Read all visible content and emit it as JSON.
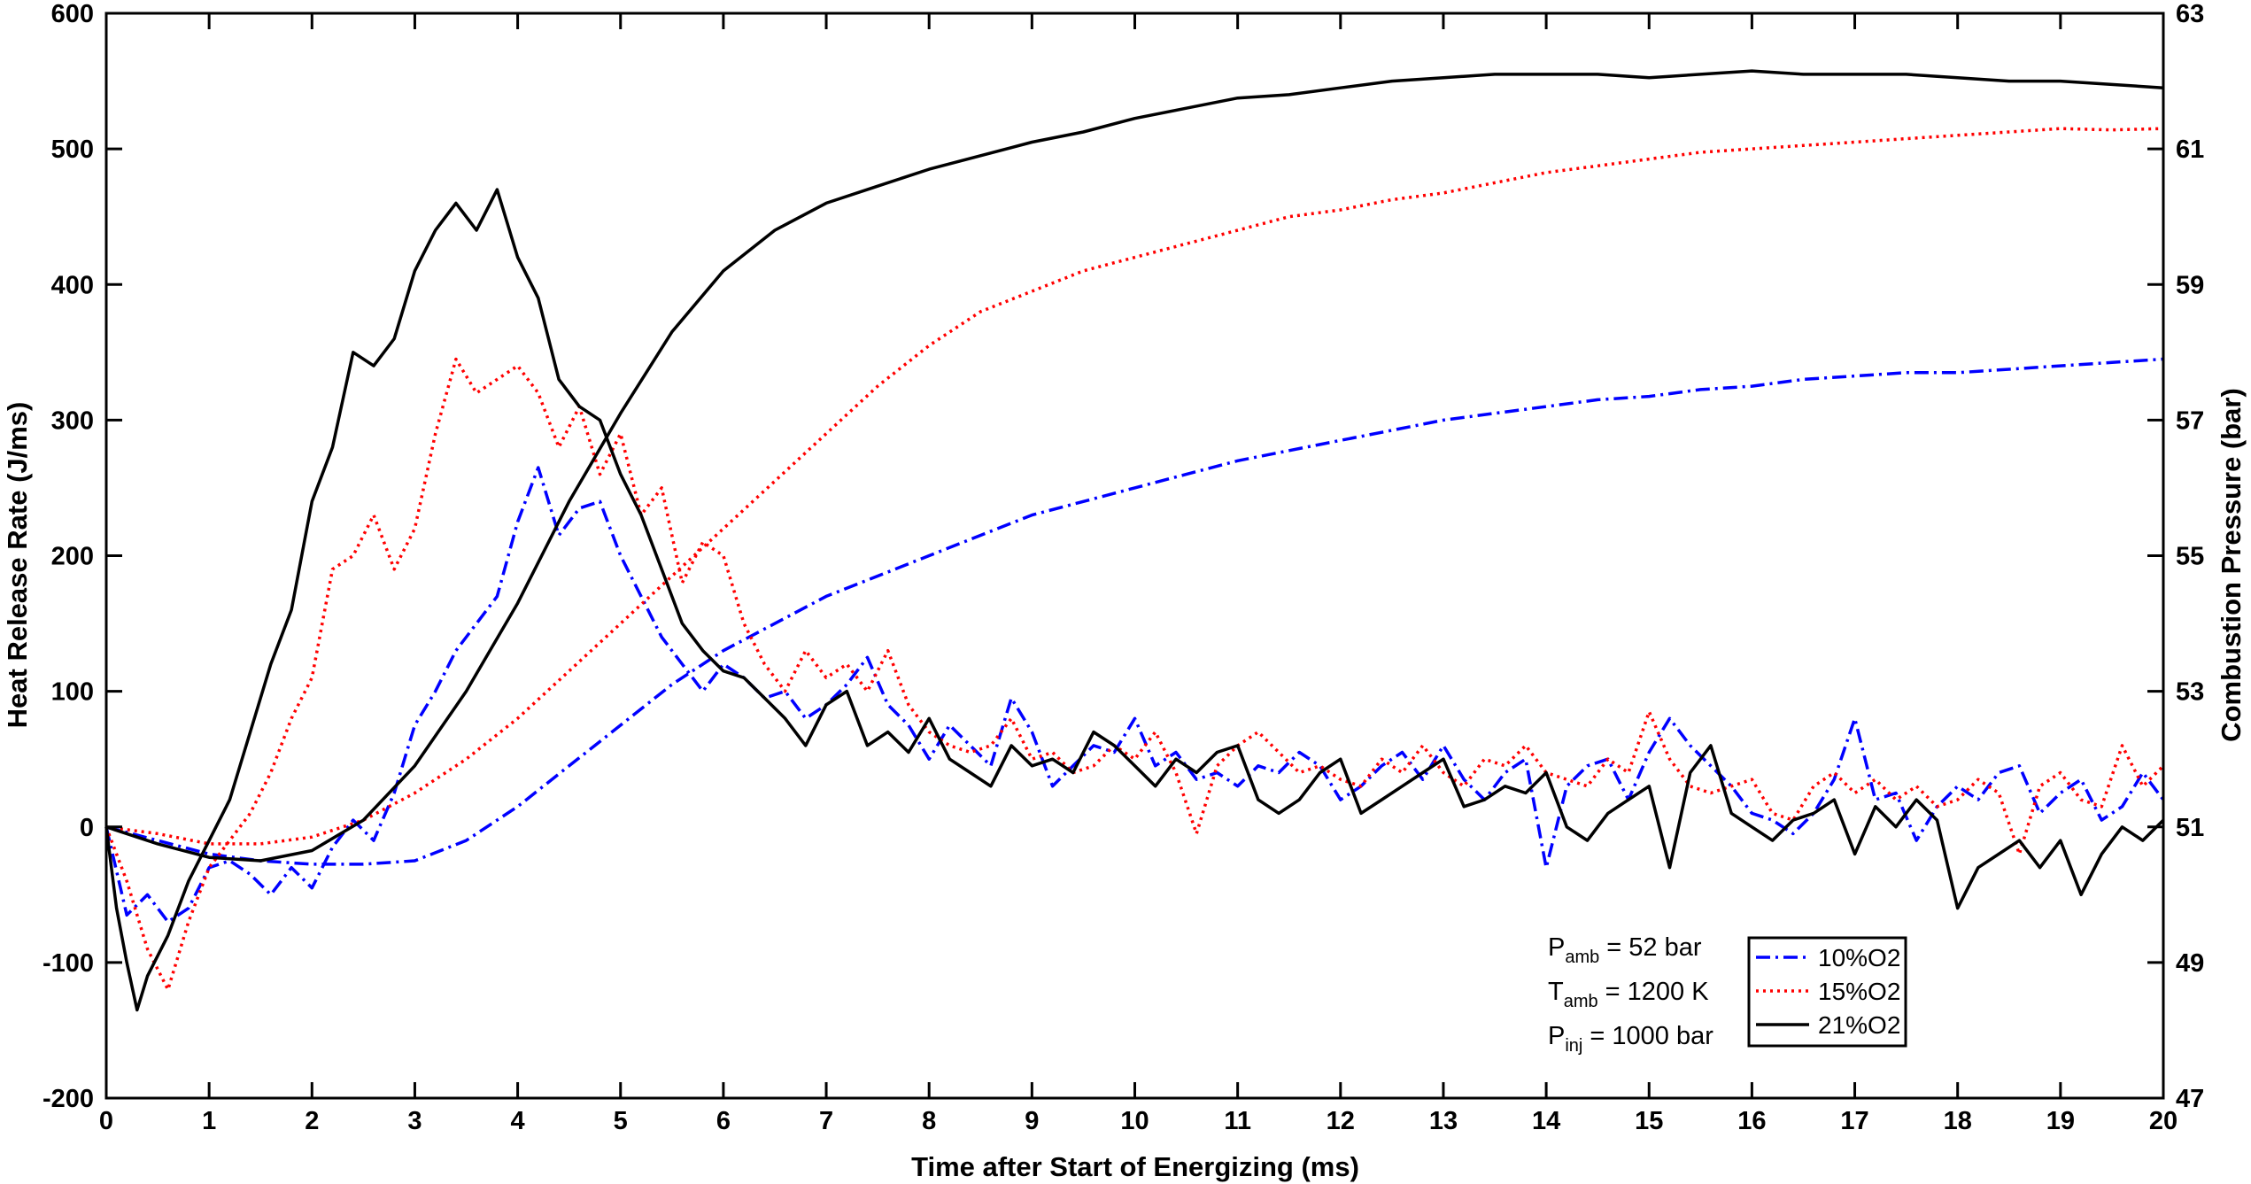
{
  "chart_data": {
    "type": "line",
    "title": "",
    "xlabel": "Time after Start of Energizing (ms)",
    "ylabel": "Heat Release Rate (J/ms)",
    "y2label": "Combustion Pressure (bar)",
    "xlim": [
      0,
      20
    ],
    "ylim": [
      -200,
      600
    ],
    "y2lim": [
      47,
      63
    ],
    "xticks": [
      "0",
      "1",
      "2",
      "3",
      "4",
      "5",
      "6",
      "7",
      "8",
      "9",
      "10",
      "11",
      "12",
      "13",
      "14",
      "15",
      "16",
      "17",
      "18",
      "19",
      "20"
    ],
    "yticks": [
      "-200",
      "-100",
      "0",
      "100",
      "200",
      "300",
      "400",
      "500",
      "600"
    ],
    "y2ticks": [
      "47",
      "49",
      "51",
      "53",
      "55",
      "57",
      "59",
      "61",
      "63"
    ],
    "grid": false,
    "legend_position": "bottom-right",
    "annotations": [
      {
        "symbol": "P",
        "sub": "amb",
        "text": " = 52 bar"
      },
      {
        "symbol": "T",
        "sub": "amb",
        "text": " = 1200 K"
      },
      {
        "symbol": "P",
        "sub": "inj",
        "text": " = 1000 bar"
      }
    ],
    "series": [
      {
        "name": "10%O2",
        "quantity": "heat release rate",
        "axis": "left",
        "color": "#0000ff",
        "dash": "dashdot",
        "x": [
          0,
          0.2,
          0.4,
          0.6,
          0.8,
          1.0,
          1.2,
          1.4,
          1.6,
          1.8,
          2.0,
          2.2,
          2.4,
          2.6,
          2.8,
          3.0,
          3.2,
          3.4,
          3.6,
          3.8,
          4.0,
          4.2,
          4.4,
          4.6,
          4.8,
          5.0,
          5.2,
          5.4,
          5.6,
          5.8,
          6.0,
          6.2,
          6.4,
          6.6,
          6.8,
          7.0,
          7.2,
          7.4,
          7.6,
          7.8,
          8.0,
          8.2,
          8.4,
          8.6,
          8.8,
          9.0,
          9.2,
          9.4,
          9.6,
          9.8,
          10.0,
          10.2,
          10.4,
          10.6,
          10.8,
          11.0,
          11.2,
          11.4,
          11.6,
          11.8,
          12.0,
          12.2,
          12.4,
          12.6,
          12.8,
          13.0,
          13.2,
          13.4,
          13.6,
          13.8,
          14.0,
          14.2,
          14.4,
          14.6,
          14.8,
          15.0,
          15.2,
          15.4,
          15.6,
          15.8,
          16.0,
          16.2,
          16.4,
          16.6,
          16.8,
          17.0,
          17.2,
          17.4,
          17.6,
          17.8,
          18.0,
          18.2,
          18.4,
          18.6,
          18.8,
          19.0,
          19.2,
          19.4,
          19.6,
          19.8,
          20.0
        ],
        "y": [
          0,
          -65,
          -50,
          -70,
          -60,
          -30,
          -25,
          -35,
          -50,
          -30,
          -45,
          -15,
          5,
          -10,
          25,
          75,
          100,
          130,
          150,
          170,
          225,
          265,
          215,
          235,
          240,
          200,
          170,
          140,
          120,
          100,
          120,
          110,
          95,
          100,
          80,
          90,
          105,
          125,
          90,
          75,
          50,
          75,
          60,
          45,
          95,
          70,
          30,
          45,
          60,
          55,
          80,
          45,
          55,
          35,
          40,
          30,
          45,
          40,
          55,
          45,
          20,
          30,
          45,
          55,
          35,
          60,
          35,
          20,
          40,
          50,
          -30,
          30,
          45,
          50,
          20,
          55,
          80,
          60,
          45,
          30,
          10,
          5,
          -5,
          10,
          35,
          80,
          20,
          25,
          -10,
          15,
          30,
          20,
          40,
          45,
          10,
          25,
          35,
          5,
          15,
          40,
          20
        ],
        "y2_x": [
          0,
          0.5,
          1,
          1.5,
          2,
          2.5,
          3,
          3.5,
          4,
          4.5,
          5,
          5.5,
          6,
          6.5,
          7,
          7.5,
          8,
          8.5,
          9,
          9.5,
          10,
          10.5,
          11,
          11.5,
          12,
          12.5,
          13,
          13.5,
          14,
          14.5,
          15,
          15.5,
          16,
          16.5,
          17,
          17.5,
          18,
          18.5,
          19,
          19.5,
          20
        ],
        "y2": [
          51.0,
          50.8,
          50.6,
          50.5,
          50.45,
          50.45,
          50.5,
          50.8,
          51.3,
          51.9,
          52.5,
          53.1,
          53.6,
          54.0,
          54.4,
          54.7,
          55.0,
          55.3,
          55.6,
          55.8,
          56.0,
          56.2,
          56.4,
          56.55,
          56.7,
          56.85,
          57.0,
          57.1,
          57.2,
          57.3,
          57.35,
          57.45,
          57.5,
          57.6,
          57.65,
          57.7,
          57.7,
          57.75,
          57.8,
          57.85,
          57.9
        ]
      },
      {
        "name": "15%O2",
        "quantity": "heat release rate",
        "axis": "left",
        "color": "#ff0000",
        "dash": "dotted",
        "x": [
          0,
          0.2,
          0.4,
          0.6,
          0.8,
          1.0,
          1.2,
          1.4,
          1.6,
          1.8,
          2.0,
          2.2,
          2.4,
          2.6,
          2.8,
          3.0,
          3.2,
          3.4,
          3.6,
          3.8,
          4.0,
          4.2,
          4.4,
          4.6,
          4.8,
          5.0,
          5.2,
          5.4,
          5.6,
          5.8,
          6.0,
          6.2,
          6.4,
          6.6,
          6.8,
          7.0,
          7.2,
          7.4,
          7.6,
          7.8,
          8.0,
          8.2,
          8.4,
          8.6,
          8.8,
          9.0,
          9.2,
          9.4,
          9.6,
          9.8,
          10.0,
          10.2,
          10.4,
          10.6,
          10.8,
          11.0,
          11.2,
          11.4,
          11.6,
          11.8,
          12.0,
          12.2,
          12.4,
          12.6,
          12.8,
          13.0,
          13.2,
          13.4,
          13.6,
          13.8,
          14.0,
          14.2,
          14.4,
          14.6,
          14.8,
          15.0,
          15.2,
          15.4,
          15.6,
          15.8,
          16.0,
          16.2,
          16.4,
          16.6,
          16.8,
          17.0,
          17.2,
          17.4,
          17.6,
          17.8,
          18.0,
          18.2,
          18.4,
          18.6,
          18.8,
          19.0,
          19.2,
          19.4,
          19.6,
          19.8,
          20.0
        ],
        "y": [
          0,
          -40,
          -90,
          -120,
          -70,
          -30,
          -10,
          10,
          40,
          80,
          110,
          190,
          200,
          230,
          190,
          220,
          290,
          345,
          320,
          330,
          340,
          320,
          280,
          310,
          260,
          290,
          230,
          250,
          180,
          210,
          200,
          150,
          120,
          100,
          130,
          110,
          120,
          100,
          130,
          90,
          70,
          60,
          55,
          60,
          80,
          50,
          55,
          40,
          45,
          60,
          50,
          70,
          40,
          -5,
          45,
          60,
          70,
          55,
          40,
          45,
          35,
          30,
          50,
          40,
          60,
          40,
          30,
          50,
          45,
          60,
          40,
          35,
          30,
          50,
          40,
          85,
          50,
          30,
          25,
          30,
          35,
          10,
          5,
          30,
          40,
          25,
          35,
          20,
          30,
          15,
          20,
          35,
          25,
          -20,
          30,
          40,
          20,
          15,
          60,
          30,
          45
        ],
        "y2_x": [
          0,
          0.5,
          1,
          1.5,
          2,
          2.5,
          3,
          3.5,
          4,
          4.5,
          5,
          5.5,
          6,
          6.5,
          7,
          7.5,
          8,
          8.5,
          9,
          9.5,
          10,
          10.5,
          11,
          11.5,
          12,
          12.5,
          13,
          13.5,
          14,
          14.5,
          15,
          15.5,
          16,
          16.5,
          17,
          17.5,
          18,
          18.5,
          19,
          19.5,
          20
        ],
        "y2": [
          51.0,
          50.9,
          50.75,
          50.75,
          50.85,
          51.1,
          51.5,
          52.0,
          52.6,
          53.3,
          54.0,
          54.7,
          55.4,
          56.1,
          56.8,
          57.5,
          58.1,
          58.6,
          58.9,
          59.2,
          59.4,
          59.6,
          59.8,
          60.0,
          60.1,
          60.25,
          60.35,
          60.5,
          60.65,
          60.75,
          60.85,
          60.95,
          61.0,
          61.05,
          61.1,
          61.15,
          61.2,
          61.25,
          61.3,
          61.28,
          61.3
        ]
      },
      {
        "name": "21%O2",
        "quantity": "heat release rate",
        "axis": "left",
        "color": "#000000",
        "dash": "solid",
        "x": [
          0,
          0.1,
          0.2,
          0.3,
          0.4,
          0.6,
          0.8,
          1.0,
          1.2,
          1.4,
          1.6,
          1.8,
          2.0,
          2.2,
          2.4,
          2.6,
          2.8,
          3.0,
          3.2,
          3.4,
          3.6,
          3.8,
          4.0,
          4.2,
          4.4,
          4.6,
          4.8,
          5.0,
          5.2,
          5.4,
          5.6,
          5.8,
          6.0,
          6.2,
          6.4,
          6.6,
          6.8,
          7.0,
          7.2,
          7.4,
          7.6,
          7.8,
          8.0,
          8.2,
          8.4,
          8.6,
          8.8,
          9.0,
          9.2,
          9.4,
          9.6,
          9.8,
          10.0,
          10.2,
          10.4,
          10.6,
          10.8,
          11.0,
          11.2,
          11.4,
          11.6,
          11.8,
          12.0,
          12.2,
          12.4,
          12.6,
          12.8,
          13.0,
          13.2,
          13.4,
          13.6,
          13.8,
          14.0,
          14.2,
          14.4,
          14.6,
          14.8,
          15.0,
          15.2,
          15.4,
          15.6,
          15.8,
          16.0,
          16.2,
          16.4,
          16.6,
          16.8,
          17.0,
          17.2,
          17.4,
          17.6,
          17.8,
          18.0,
          18.2,
          18.4,
          18.6,
          18.8,
          19.0,
          19.2,
          19.4,
          19.6,
          19.8,
          20.0
        ],
        "y": [
          0,
          -60,
          -100,
          -135,
          -110,
          -80,
          -40,
          -10,
          20,
          70,
          120,
          160,
          240,
          280,
          350,
          340,
          360,
          410,
          440,
          460,
          440,
          470,
          420,
          390,
          330,
          310,
          300,
          260,
          230,
          190,
          150,
          130,
          115,
          110,
          95,
          80,
          60,
          90,
          100,
          60,
          70,
          55,
          80,
          50,
          40,
          30,
          60,
          45,
          50,
          40,
          70,
          60,
          45,
          30,
          50,
          40,
          55,
          60,
          20,
          10,
          20,
          40,
          50,
          10,
          20,
          30,
          40,
          50,
          15,
          20,
          30,
          25,
          40,
          0,
          -10,
          10,
          20,
          30,
          -30,
          40,
          60,
          10,
          0,
          -10,
          5,
          10,
          20,
          -20,
          15,
          0,
          20,
          5,
          -60,
          -30,
          -20,
          -10,
          -30,
          -10,
          -50,
          -20,
          0,
          -10,
          5
        ],
        "y2_x": [
          0,
          0.5,
          1,
          1.5,
          2,
          2.5,
          3,
          3.5,
          4,
          4.5,
          5,
          5.5,
          6,
          6.5,
          7,
          7.5,
          8,
          8.5,
          9,
          9.5,
          10,
          10.5,
          11,
          11.5,
          12,
          12.5,
          13,
          13.5,
          14,
          14.5,
          15,
          15.5,
          16,
          16.5,
          17,
          17.5,
          18,
          18.5,
          19,
          19.5,
          20
        ],
        "y2": [
          51.0,
          50.75,
          50.55,
          50.5,
          50.65,
          51.1,
          51.9,
          53.0,
          54.3,
          55.8,
          57.1,
          58.3,
          59.2,
          59.8,
          60.2,
          60.45,
          60.7,
          60.9,
          61.1,
          61.25,
          61.45,
          61.6,
          61.75,
          61.8,
          61.9,
          62.0,
          62.05,
          62.1,
          62.1,
          62.1,
          62.05,
          62.1,
          62.15,
          62.1,
          62.1,
          62.1,
          62.05,
          62.0,
          62.0,
          61.95,
          61.9
        ]
      }
    ]
  }
}
